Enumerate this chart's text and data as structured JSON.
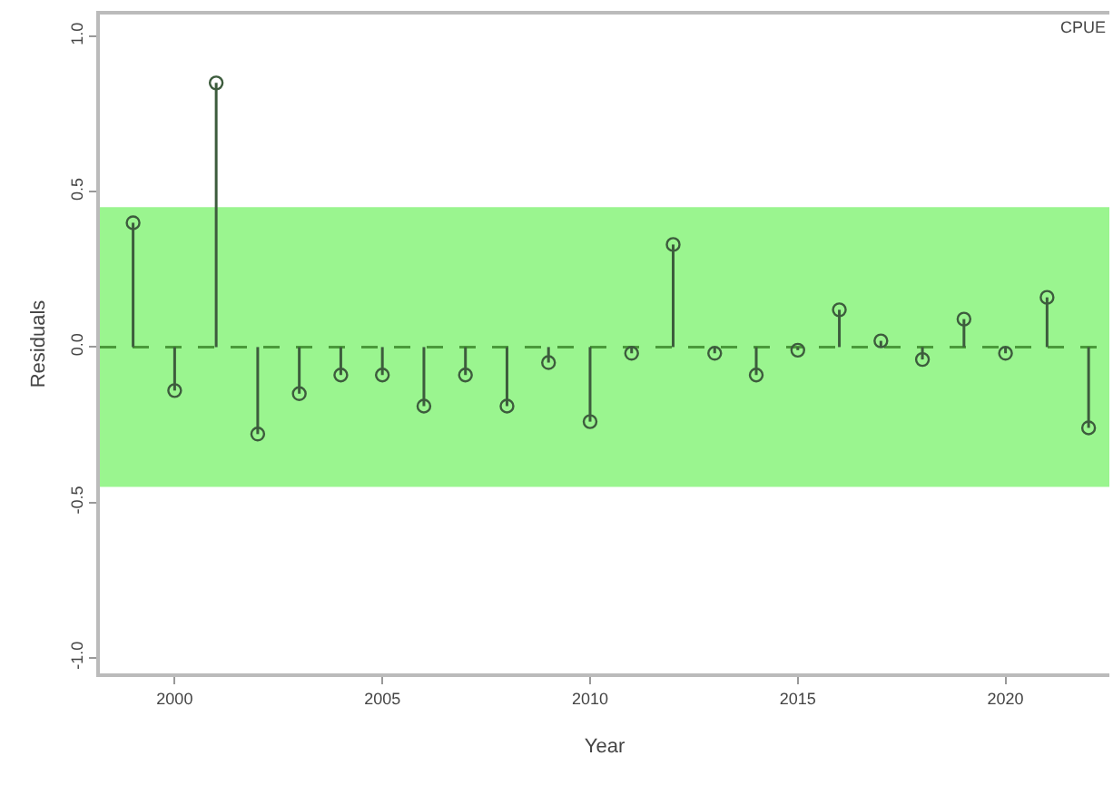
{
  "chart_data": {
    "type": "lollipop",
    "xlabel": "Year",
    "ylabel": "Residuals",
    "x": [
      1999,
      2000,
      2001,
      2002,
      2003,
      2004,
      2005,
      2006,
      2007,
      2008,
      2009,
      2010,
      2011,
      2012,
      2013,
      2014,
      2015,
      2016,
      2017,
      2018,
      2019,
      2020,
      2021,
      2022
    ],
    "series": [
      {
        "color": "#3d5c3d",
        "values": [
          0.4,
          -0.14,
          0.85,
          -0.28,
          -0.15,
          -0.09,
          -0.09,
          -0.19,
          -0.09,
          -0.19,
          -0.05,
          -0.24,
          -0.02,
          0.33,
          -0.02,
          -0.09,
          -0.01,
          0.12,
          0.02,
          -0.04,
          0.09,
          -0.02,
          0.16,
          -0.26
        ]
      }
    ],
    "xlim": [
      1998.2,
      2022.5
    ],
    "xticks": [
      2000,
      2005,
      2010,
      2015,
      2020
    ],
    "ylim": [
      -1.05,
      1.07
    ],
    "yticks": [
      {
        "value": -1,
        "label": "-1.0"
      },
      {
        "value": -0.5,
        "label": "-0.5"
      },
      {
        "value": 0,
        "label": "0.0"
      },
      {
        "value": 0.5,
        "label": "0.5"
      },
      {
        "value": 1,
        "label": "1.0"
      }
    ],
    "bands": [
      {
        "axis": "y",
        "from": -0.45,
        "to": 0.45,
        "color": "#9af58f"
      }
    ],
    "ref_lines": [
      {
        "axis": "y",
        "value": 0,
        "color": "#4a9a3a",
        "line_style": "dashed"
      }
    ],
    "annotations": [
      "CPUE"
    ],
    "marker": "circle",
    "grid": false
  }
}
